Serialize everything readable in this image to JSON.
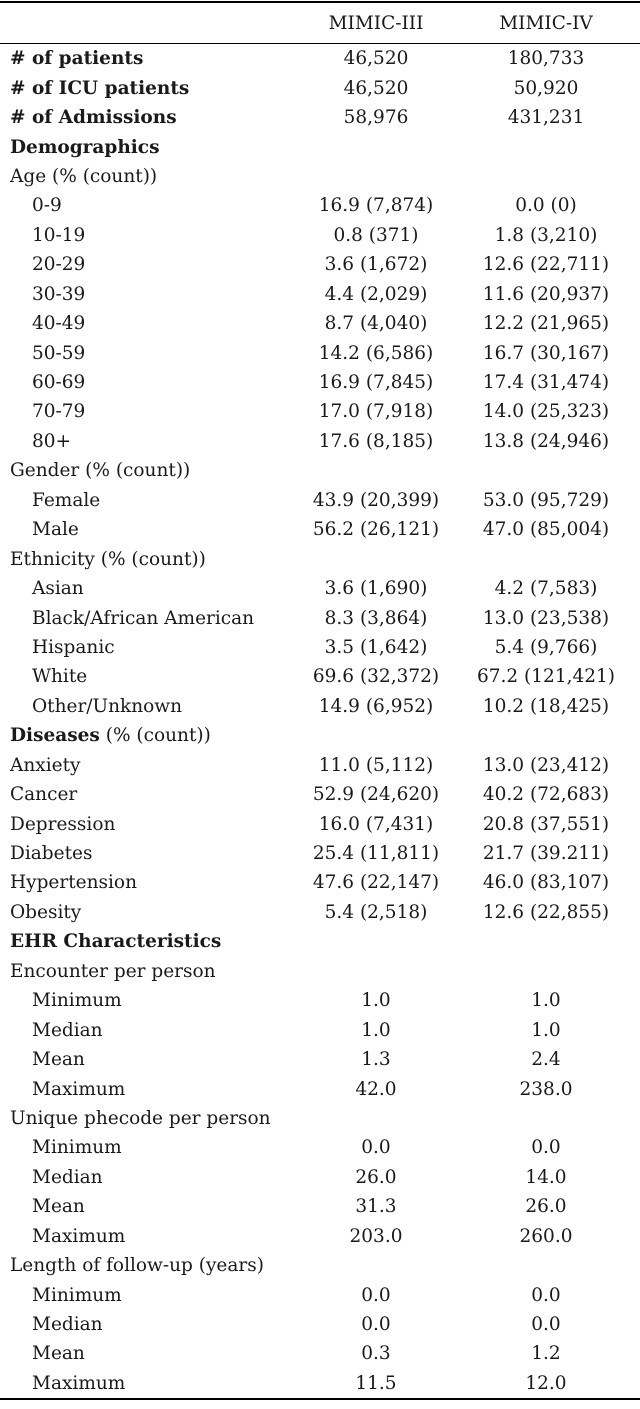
{
  "colors": {
    "text": "#1a1a1a",
    "background": "#ffffff",
    "rule": "#000000"
  },
  "table": {
    "columns": [
      "",
      "MIMIC-III",
      "MIMIC-IV"
    ],
    "rows": [
      {
        "label": "# of patients",
        "suffix": "",
        "bold": true,
        "indent": 0,
        "v1": "46,520",
        "v2": "180,733"
      },
      {
        "label": "# of ICU patients",
        "suffix": "",
        "bold": true,
        "indent": 0,
        "v1": "46,520",
        "v2": "50,920"
      },
      {
        "label": "# of Admissions",
        "suffix": "",
        "bold": true,
        "indent": 0,
        "v1": "58,976",
        "v2": "431,231"
      },
      {
        "label": "Demographics",
        "suffix": "",
        "bold": true,
        "indent": 0,
        "v1": "",
        "v2": ""
      },
      {
        "label": "Age (% (count))",
        "suffix": "",
        "bold": false,
        "indent": 0,
        "v1": "",
        "v2": ""
      },
      {
        "label": "0-9",
        "suffix": "",
        "bold": false,
        "indent": 1,
        "v1": "16.9 (7,874)",
        "v2": "0.0 (0)"
      },
      {
        "label": "10-19",
        "suffix": "",
        "bold": false,
        "indent": 1,
        "v1": "0.8 (371)",
        "v2": "1.8 (3,210)"
      },
      {
        "label": "20-29",
        "suffix": "",
        "bold": false,
        "indent": 1,
        "v1": "3.6 (1,672)",
        "v2": "12.6 (22,711)"
      },
      {
        "label": "30-39",
        "suffix": "",
        "bold": false,
        "indent": 1,
        "v1": "4.4 (2,029)",
        "v2": "11.6 (20,937)"
      },
      {
        "label": "40-49",
        "suffix": "",
        "bold": false,
        "indent": 1,
        "v1": "8.7 (4,040)",
        "v2": "12.2 (21,965)"
      },
      {
        "label": "50-59",
        "suffix": "",
        "bold": false,
        "indent": 1,
        "v1": "14.2 (6,586)",
        "v2": "16.7 (30,167)"
      },
      {
        "label": "60-69",
        "suffix": "",
        "bold": false,
        "indent": 1,
        "v1": "16.9 (7,845)",
        "v2": "17.4 (31,474)"
      },
      {
        "label": "70-79",
        "suffix": "",
        "bold": false,
        "indent": 1,
        "v1": "17.0 (7,918)",
        "v2": "14.0 (25,323)"
      },
      {
        "label": "80+",
        "suffix": "",
        "bold": false,
        "indent": 1,
        "v1": "17.6 (8,185)",
        "v2": "13.8 (24,946)"
      },
      {
        "label": "Gender (% (count))",
        "suffix": "",
        "bold": false,
        "indent": 0,
        "v1": "",
        "v2": ""
      },
      {
        "label": "Female",
        "suffix": "",
        "bold": false,
        "indent": 1,
        "v1": "43.9 (20,399)",
        "v2": "53.0 (95,729)"
      },
      {
        "label": "Male",
        "suffix": "",
        "bold": false,
        "indent": 1,
        "v1": "56.2 (26,121)",
        "v2": "47.0 (85,004)"
      },
      {
        "label": "Ethnicity (% (count))",
        "suffix": "",
        "bold": false,
        "indent": 0,
        "v1": "",
        "v2": ""
      },
      {
        "label": "Asian",
        "suffix": "",
        "bold": false,
        "indent": 1,
        "v1": "3.6 (1,690)",
        "v2": "4.2 (7,583)"
      },
      {
        "label": "Black/African American",
        "suffix": "",
        "bold": false,
        "indent": 1,
        "v1": "8.3 (3,864)",
        "v2": "13.0 (23,538)"
      },
      {
        "label": "Hispanic",
        "suffix": "",
        "bold": false,
        "indent": 1,
        "v1": "3.5 (1,642)",
        "v2": "5.4 (9,766)"
      },
      {
        "label": "White",
        "suffix": "",
        "bold": false,
        "indent": 1,
        "v1": "69.6 (32,372)",
        "v2": "67.2 (121,421)"
      },
      {
        "label": "Other/Unknown",
        "suffix": "",
        "bold": false,
        "indent": 1,
        "v1": "14.9 (6,952)",
        "v2": "10.2 (18,425)"
      },
      {
        "label": "Diseases",
        "suffix": " (% (count))",
        "bold": true,
        "indent": 0,
        "v1": "",
        "v2": ""
      },
      {
        "label": "Anxiety",
        "suffix": "",
        "bold": false,
        "indent": 0,
        "v1": "11.0 (5,112)",
        "v2": "13.0 (23,412)"
      },
      {
        "label": "Cancer",
        "suffix": "",
        "bold": false,
        "indent": 0,
        "v1": "52.9 (24,620)",
        "v2": "40.2 (72,683)"
      },
      {
        "label": "Depression",
        "suffix": "",
        "bold": false,
        "indent": 0,
        "v1": "16.0 (7,431)",
        "v2": "20.8 (37,551)"
      },
      {
        "label": "Diabetes",
        "suffix": "",
        "bold": false,
        "indent": 0,
        "v1": "25.4 (11,811)",
        "v2": "21.7 (39.211)"
      },
      {
        "label": "Hypertension",
        "suffix": "",
        "bold": false,
        "indent": 0,
        "v1": "47.6 (22,147)",
        "v2": "46.0 (83,107)"
      },
      {
        "label": "Obesity",
        "suffix": "",
        "bold": false,
        "indent": 0,
        "v1": "5.4 (2,518)",
        "v2": "12.6 (22,855)"
      },
      {
        "label": "EHR Characteristics",
        "suffix": "",
        "bold": true,
        "indent": 0,
        "v1": "",
        "v2": ""
      },
      {
        "label": "Encounter per person",
        "suffix": "",
        "bold": false,
        "indent": 0,
        "v1": "",
        "v2": ""
      },
      {
        "label": "Minimum",
        "suffix": "",
        "bold": false,
        "indent": 1,
        "v1": "1.0",
        "v2": "1.0"
      },
      {
        "label": "Median",
        "suffix": "",
        "bold": false,
        "indent": 1,
        "v1": "1.0",
        "v2": "1.0"
      },
      {
        "label": "Mean",
        "suffix": "",
        "bold": false,
        "indent": 1,
        "v1": "1.3",
        "v2": "2.4"
      },
      {
        "label": "Maximum",
        "suffix": "",
        "bold": false,
        "indent": 1,
        "v1": "42.0",
        "v2": "238.0"
      },
      {
        "label": "Unique phecode per person",
        "suffix": "",
        "bold": false,
        "indent": 0,
        "v1": "",
        "v2": ""
      },
      {
        "label": "Minimum",
        "suffix": "",
        "bold": false,
        "indent": 1,
        "v1": "0.0",
        "v2": "0.0"
      },
      {
        "label": "Median",
        "suffix": "",
        "bold": false,
        "indent": 1,
        "v1": "26.0",
        "v2": "14.0"
      },
      {
        "label": "Mean",
        "suffix": "",
        "bold": false,
        "indent": 1,
        "v1": "31.3",
        "v2": "26.0"
      },
      {
        "label": "Maximum",
        "suffix": "",
        "bold": false,
        "indent": 1,
        "v1": "203.0",
        "v2": "260.0"
      },
      {
        "label": "Length of follow-up (years)",
        "suffix": "",
        "bold": false,
        "indent": 0,
        "v1": "",
        "v2": ""
      },
      {
        "label": "Minimum",
        "suffix": "",
        "bold": false,
        "indent": 1,
        "v1": "0.0",
        "v2": "0.0"
      },
      {
        "label": "Median",
        "suffix": "",
        "bold": false,
        "indent": 1,
        "v1": "0.0",
        "v2": "0.0"
      },
      {
        "label": "Mean",
        "suffix": "",
        "bold": false,
        "indent": 1,
        "v1": "0.3",
        "v2": "1.2"
      },
      {
        "label": "Maximum",
        "suffix": "",
        "bold": false,
        "indent": 1,
        "v1": "11.5",
        "v2": "12.0"
      }
    ]
  }
}
